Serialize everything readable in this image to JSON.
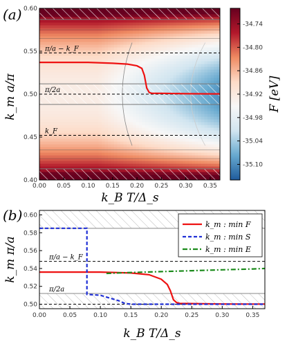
{
  "chart_data": [
    {
      "panel_label": "(a)",
      "type": "heatmap",
      "xlabel": "k_B T/Δ_s",
      "ylabel": "k_m a/π",
      "xlim": [
        0.0,
        0.37
      ],
      "ylim": [
        0.4,
        0.6
      ],
      "xticks": [
        "0.00",
        "0.05",
        "0.10",
        "0.15",
        "0.20",
        "0.25",
        "0.30",
        "0.35"
      ],
      "yticks": [
        "0.40",
        "0.45",
        "0.50",
        "0.55",
        "0.60"
      ],
      "colorbar": {
        "label": "F [eV]",
        "range": [
          -35.14,
          -34.7
        ],
        "ticks": [
          "-34.74",
          "-34.80",
          "-34.86",
          "-34.92",
          "-34.98",
          "-35.04",
          "-35.10"
        ],
        "colors": [
          "#1f5b9c",
          "#67a9cf",
          "#d1e5f0",
          "#f7f7f7",
          "#fddbc7",
          "#ef8a62",
          "#b2182b",
          "#67001f"
        ]
      },
      "annotations": [
        "π/a − k_F",
        "π/2a",
        "k_F"
      ],
      "reference_lines": {
        "dashed": [
          0.548,
          0.5,
          0.452
        ],
        "solid_gray": [
          0.587,
          0.512,
          0.488,
          0.413
        ]
      },
      "hatched_bands": [
        [
          0.587,
          0.6
        ],
        [
          0.488,
          0.512
        ],
        [
          0.4,
          0.413
        ]
      ],
      "series": [
        {
          "x": [
            0.0,
            0.05,
            0.1,
            0.15,
            0.18,
            0.2,
            0.21,
            0.215,
            0.22,
            0.225,
            0.23,
            0.25,
            0.3,
            0.35,
            0.37
          ],
          "y": [
            0.537,
            0.537,
            0.537,
            0.536,
            0.535,
            0.533,
            0.53,
            0.522,
            0.507,
            0.502,
            0.501,
            0.501,
            0.5005,
            0.5003,
            0.5003
          ]
        }
      ]
    },
    {
      "panel_label": "(b)",
      "type": "line",
      "xlabel": "k_B T/Δ_s",
      "ylabel": "k_m π/a",
      "xlim": [
        0.0,
        0.37
      ],
      "ylim": [
        0.495,
        0.605
      ],
      "xticks": [
        "0.00",
        "0.05",
        "0.10",
        "0.15",
        "0.20",
        "0.25",
        "0.30",
        "0.35"
      ],
      "yticks": [
        "0.50",
        "0.52",
        "0.54",
        "0.56",
        "0.58",
        "0.60"
      ],
      "annotations": [
        "π/a − k_F",
        "π/2a"
      ],
      "reference_lines": {
        "dashed": [
          0.548,
          0.5
        ],
        "solid_gray": [
          0.585,
          0.512
        ]
      },
      "hatched_bands": [
        [
          0.585,
          0.605
        ],
        [
          0.495,
          0.512
        ]
      ],
      "legend_position": "top-right",
      "series": [
        {
          "name": "k_m : min F",
          "style": "solid",
          "color": "#ee1111",
          "x": [
            0.0,
            0.05,
            0.1,
            0.15,
            0.18,
            0.2,
            0.21,
            0.215,
            0.22,
            0.225,
            0.23,
            0.25,
            0.3,
            0.35,
            0.37
          ],
          "y": [
            0.536,
            0.536,
            0.536,
            0.535,
            0.533,
            0.528,
            0.522,
            0.515,
            0.505,
            0.502,
            0.501,
            0.5007,
            0.5003,
            0.5002,
            0.5002
          ]
        },
        {
          "name": "k_m : min S",
          "style": "dashed",
          "color": "#1f2fd6",
          "x": [
            0.0,
            0.078,
            0.078,
            0.1,
            0.11,
            0.12,
            0.13,
            0.14,
            0.15,
            0.2,
            0.3,
            0.37
          ],
          "y": [
            0.585,
            0.585,
            0.511,
            0.51,
            0.508,
            0.506,
            0.504,
            0.501,
            0.5,
            0.5,
            0.5,
            0.5
          ]
        },
        {
          "name": "k_m : min E",
          "style": "dash-dot",
          "color": "#1a8a1a",
          "x": [
            0.11,
            0.15,
            0.2,
            0.25,
            0.3,
            0.35,
            0.37
          ],
          "y": [
            0.5345,
            0.5355,
            0.5365,
            0.5375,
            0.5385,
            0.5395,
            0.54
          ]
        }
      ]
    }
  ]
}
